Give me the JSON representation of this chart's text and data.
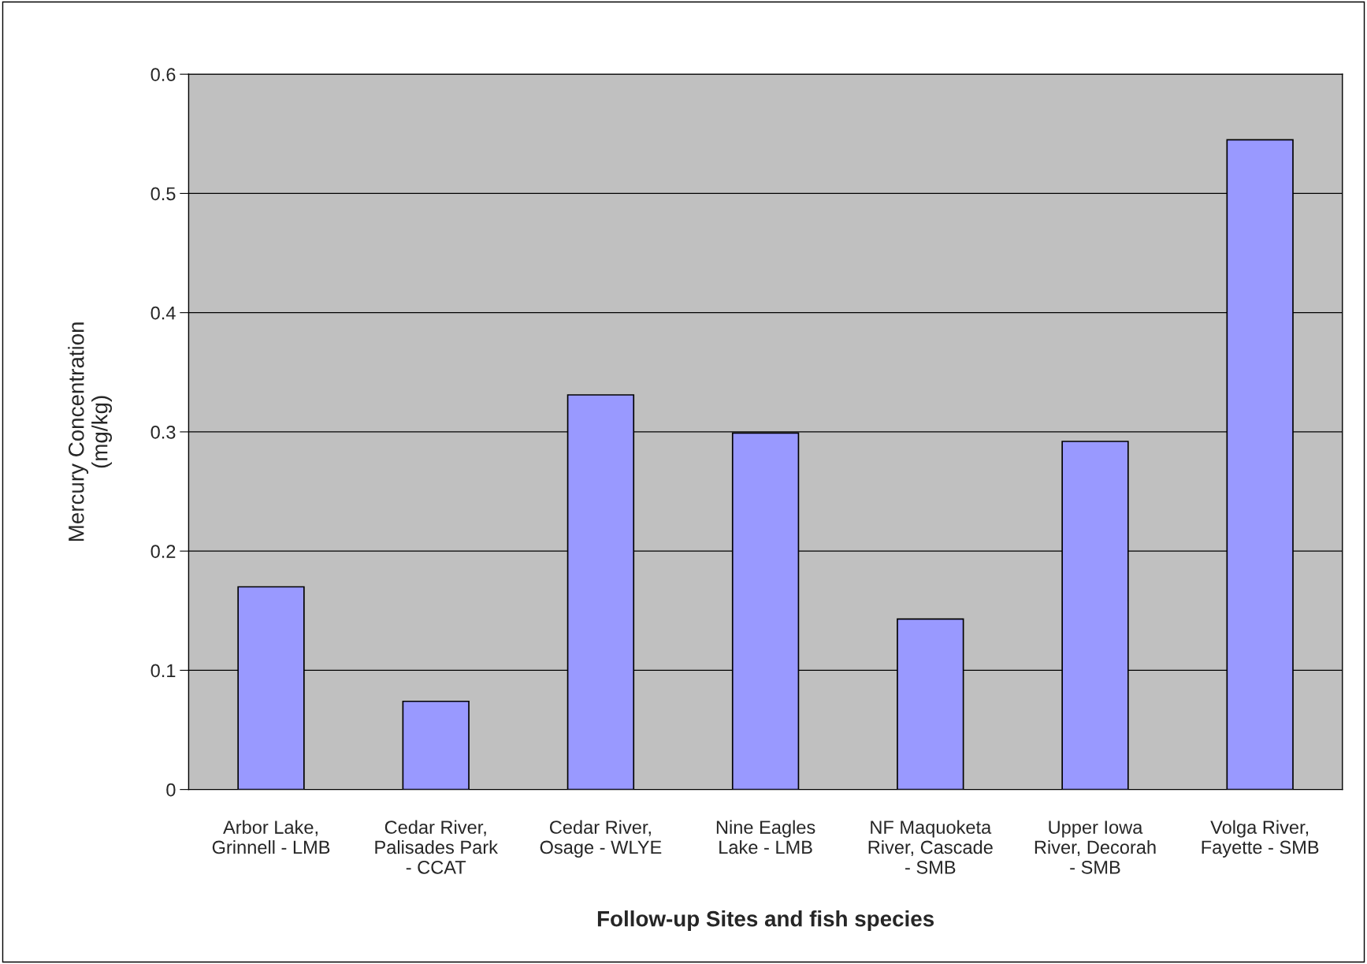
{
  "chart_data": {
    "type": "bar",
    "xlabel": "Follow-up Sites and fish species",
    "ylabel": "Mercury Concentration (mg/kg)",
    "categories": [
      "Arbor Lake, Grinnell - LMB",
      "Cedar River, Palisades Park - CCAT",
      "Cedar River, Osage - WLYE",
      "Nine Eagles Lake - LMB",
      "NF Maquoketa River, Cascade - SMB",
      "Upper Iowa River, Decorah - SMB",
      "Volga River, Fayette - SMB"
    ],
    "values": [
      0.17,
      0.074,
      0.331,
      0.299,
      0.143,
      0.292,
      0.545
    ],
    "color": "#9999ff",
    "ylim": [
      0,
      0.6
    ],
    "yticks": [
      0,
      0.1,
      0.2,
      0.3,
      0.4,
      0.5,
      0.6
    ],
    "grid": "y",
    "legend": false
  }
}
